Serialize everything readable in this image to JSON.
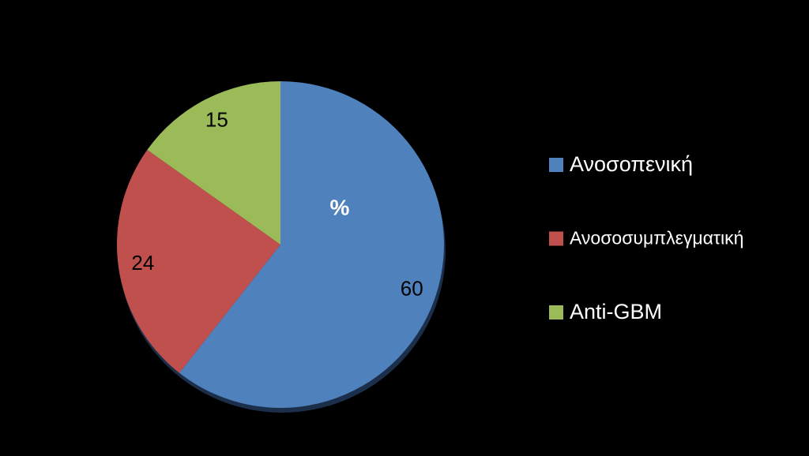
{
  "chart_data": {
    "type": "pie",
    "title": "%",
    "categories": [
      "Ανοσοπενική",
      "Ανοσοσυμπλεγματική",
      "Anti-GBM"
    ],
    "values": [
      60,
      24,
      15
    ],
    "colors": [
      "#4f81bd",
      "#c0504d",
      "#9bbb59"
    ],
    "legend": "right"
  }
}
